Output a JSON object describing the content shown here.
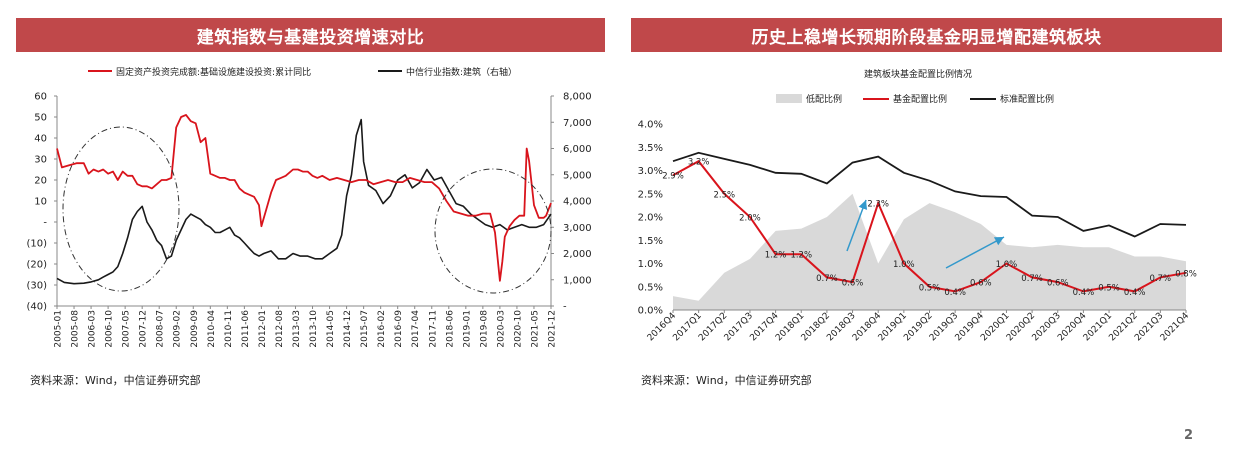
{
  "panels": {
    "left_title": "建筑指数与基建投资增速对比",
    "right_title": "历史上稳增长预期阶段基金明显增配建筑板块",
    "left_source": "资料来源：Wind，中信证券研究部",
    "right_source": "资料来源：Wind，中信证券研究部"
  },
  "page_number": "2",
  "colors": {
    "banner": "#c0484a",
    "red": "#d9141c",
    "black": "#1a1a1a",
    "gray_area": "#d9d9d9",
    "arrow": "#3399cc"
  },
  "chart_data": [
    {
      "type": "line",
      "title": "",
      "legend_position": "top",
      "grid": false,
      "x_tick_labels": [
        "2005-01",
        "2005-08",
        "2006-03",
        "2006-10",
        "2007-05",
        "2007-12",
        "2008-07",
        "2009-02",
        "2009-09",
        "2010-04",
        "2010-11",
        "2011-06",
        "2012-01",
        "2012-08",
        "2013-03",
        "2013-10",
        "2014-05",
        "2014-12",
        "2015-07",
        "2016-02",
        "2016-09",
        "2017-04",
        "2017-11",
        "2018-06",
        "2019-01",
        "2019-08",
        "2020-03",
        "2020-10",
        "2021-05",
        "2021-12"
      ],
      "y_left_tick_labels": [
        "60",
        "50",
        "40",
        "30",
        "20",
        "10",
        "-",
        "(10)",
        "(20)",
        "(30)",
        "(40)"
      ],
      "y_left_range": [
        -40,
        60
      ],
      "y_right_tick_labels": [
        "8,000",
        "7,000",
        "6,000",
        "5,000",
        "4,000",
        "3,000",
        "2,000",
        "1,000",
        "-"
      ],
      "y_right_range": [
        0,
        8000
      ],
      "series": [
        {
          "name": "固定资产投资完成额:基础设施建设投资:累计同比",
          "axis": "left",
          "color": "#d9141c",
          "x": [
            "2005-01",
            "2005-03",
            "2005-06",
            "2005-09",
            "2005-12",
            "2006-02",
            "2006-04",
            "2006-06",
            "2006-08",
            "2006-10",
            "2006-12",
            "2007-02",
            "2007-04",
            "2007-06",
            "2007-08",
            "2007-10",
            "2007-12",
            "2008-02",
            "2008-04",
            "2008-06",
            "2008-08",
            "2008-10",
            "2008-12",
            "2009-02",
            "2009-04",
            "2009-06",
            "2009-08",
            "2009-10",
            "2009-12",
            "2010-02",
            "2010-04",
            "2010-06",
            "2010-08",
            "2010-10",
            "2010-12",
            "2011-02",
            "2011-04",
            "2011-06",
            "2011-08",
            "2011-10",
            "2011-12",
            "2012-01",
            "2012-03",
            "2012-05",
            "2012-07",
            "2012-09",
            "2012-11",
            "2013-02",
            "2013-04",
            "2013-06",
            "2013-08",
            "2013-10",
            "2013-12",
            "2014-02",
            "2014-05",
            "2014-08",
            "2014-11",
            "2015-02",
            "2015-05",
            "2015-08",
            "2015-11",
            "2016-02",
            "2016-05",
            "2016-08",
            "2016-11",
            "2017-02",
            "2017-05",
            "2017-08",
            "2017-11",
            "2018-02",
            "2018-05",
            "2018-08",
            "2018-11",
            "2019-02",
            "2019-05",
            "2019-08",
            "2019-11",
            "2020-01",
            "2020-03",
            "2020-04",
            "2020-05",
            "2020-07",
            "2020-09",
            "2020-11",
            "2021-01",
            "2021-02",
            "2021-03",
            "2021-05",
            "2021-07",
            "2021-09",
            "2021-10",
            "2021-12"
          ],
          "values": [
            35,
            26,
            27,
            28,
            28,
            23,
            25,
            24,
            25,
            23,
            24,
            20,
            24,
            22,
            22,
            18,
            17,
            17,
            16,
            18,
            20,
            20,
            21,
            45,
            50,
            51,
            48,
            47,
            38,
            40,
            23,
            22,
            21,
            21,
            20,
            20,
            16,
            14,
            13,
            12,
            8,
            -2,
            6,
            14,
            20,
            21,
            22,
            25,
            25,
            24,
            24,
            22,
            21,
            22,
            20,
            21,
            20,
            19,
            20,
            20,
            18,
            19,
            20,
            19,
            19,
            21,
            20,
            19,
            19,
            16,
            10,
            5,
            4,
            3,
            3,
            4,
            4,
            -5,
            -28,
            -19,
            -7,
            -2,
            1,
            3,
            3,
            35,
            29,
            8,
            2,
            2,
            3,
            9
          ]
        },
        {
          "name": "中信行业指数:建筑（右轴）",
          "axis": "right",
          "color": "#1a1a1a",
          "x": [
            "2005-01",
            "2005-04",
            "2005-08",
            "2005-12",
            "2006-03",
            "2006-06",
            "2006-08",
            "2006-10",
            "2006-12",
            "2007-02",
            "2007-04",
            "2007-06",
            "2007-08",
            "2007-10",
            "2007-12",
            "2008-02",
            "2008-04",
            "2008-06",
            "2008-08",
            "2008-10",
            "2008-12",
            "2009-02",
            "2009-04",
            "2009-06",
            "2009-08",
            "2009-10",
            "2009-12",
            "2010-02",
            "2010-04",
            "2010-06",
            "2010-08",
            "2010-10",
            "2010-12",
            "2011-02",
            "2011-04",
            "2011-06",
            "2011-08",
            "2011-10",
            "2011-12",
            "2012-02",
            "2012-05",
            "2012-08",
            "2012-11",
            "2013-02",
            "2013-05",
            "2013-08",
            "2013-11",
            "2014-02",
            "2014-05",
            "2014-08",
            "2014-10",
            "2014-12",
            "2015-02",
            "2015-04",
            "2015-06",
            "2015-07",
            "2015-09",
            "2015-12",
            "2016-03",
            "2016-06",
            "2016-09",
            "2016-12",
            "2017-03",
            "2017-06",
            "2017-09",
            "2017-12",
            "2018-03",
            "2018-06",
            "2018-09",
            "2018-12",
            "2019-03",
            "2019-06",
            "2019-09",
            "2019-12",
            "2020-03",
            "2020-06",
            "2020-09",
            "2020-12",
            "2021-03",
            "2021-06",
            "2021-09",
            "2021-12"
          ],
          "values": [
            1050,
            900,
            850,
            870,
            920,
            1000,
            1100,
            1200,
            1300,
            1500,
            2000,
            2600,
            3300,
            3600,
            3800,
            3200,
            2900,
            2500,
            2300,
            1800,
            1900,
            2500,
            2900,
            3300,
            3500,
            3400,
            3300,
            3100,
            3000,
            2800,
            2800,
            2900,
            3000,
            2700,
            2600,
            2400,
            2200,
            2000,
            1900,
            2000,
            2100,
            1800,
            1800,
            2000,
            1900,
            1900,
            1800,
            1800,
            2000,
            2200,
            2700,
            4200,
            5000,
            6500,
            7100,
            5500,
            4600,
            4400,
            3900,
            4200,
            4800,
            5000,
            4500,
            4700,
            5200,
            4800,
            4900,
            4400,
            3900,
            3800,
            3500,
            3300,
            3100,
            3000,
            3100,
            2900,
            3000,
            3100,
            3000,
            3000,
            3100,
            3500
          ]
        }
      ],
      "annotations": [
        "dash-dot ellipse around 2006-2008",
        "dash-dot ellipse around 2018-2021"
      ]
    },
    {
      "type": "line",
      "title": "建筑板块基金配置比例情况",
      "legend_position": "top",
      "grid": false,
      "categories": [
        "2016Q4",
        "2017Q1",
        "2017Q2",
        "2017Q3",
        "2017Q4",
        "2018Q1",
        "2018Q2",
        "2018Q3",
        "2018Q4",
        "2019Q1",
        "2019Q2",
        "2019Q3",
        "2019Q4",
        "2020Q1",
        "2020Q2",
        "2020Q3",
        "2020Q4",
        "2021Q1",
        "2021Q2",
        "2021Q3",
        "2021Q4"
      ],
      "y_tick_labels": [
        "4.0%",
        "3.5%",
        "3.0%",
        "2.5%",
        "2.0%",
        "1.5%",
        "1.0%",
        "0.5%",
        "0.0%"
      ],
      "ylim": [
        0,
        4.0
      ],
      "series": [
        {
          "name": "低配比例",
          "kind": "area",
          "color": "#d9d9d9",
          "values": [
            0.3,
            0.2,
            0.8,
            1.1,
            1.7,
            1.75,
            2.0,
            2.5,
            1.0,
            1.95,
            2.3,
            2.1,
            1.85,
            1.4,
            1.35,
            1.4,
            1.35,
            1.35,
            1.15,
            1.15,
            1.05
          ]
        },
        {
          "name": "基金配置比例",
          "kind": "line",
          "color": "#d9141c",
          "values": [
            2.9,
            3.2,
            2.5,
            2.0,
            1.2,
            1.2,
            0.7,
            0.6,
            2.3,
            1.0,
            0.5,
            0.4,
            0.6,
            1.0,
            0.7,
            0.6,
            0.4,
            0.5,
            0.4,
            0.7,
            0.8
          ],
          "data_labels": [
            "2.9%",
            "3.2%",
            "2.5%",
            "2.0%",
            "1.2%",
            "1.2%",
            "0.7%",
            "0.6%",
            "2.3%",
            "1.0%",
            "0.5%",
            "0.4%",
            "0.6%",
            "1.0%",
            "0.7%",
            "0.6%",
            "0.4%",
            "0.5%",
            "0.4%",
            "0.7%",
            "0.8%"
          ]
        },
        {
          "name": "标准配置比例",
          "kind": "line",
          "color": "#1a1a1a",
          "values": [
            3.2,
            3.38,
            3.25,
            3.12,
            2.95,
            2.93,
            2.72,
            3.17,
            3.3,
            2.95,
            2.78,
            2.55,
            2.45,
            2.43,
            2.03,
            2.0,
            1.7,
            1.82,
            1.58,
            1.85,
            1.83
          ]
        }
      ],
      "annotations": [
        "blue arrows indicating increased allocation in 2018Q3 and 2019Q4-2020Q1"
      ]
    }
  ]
}
